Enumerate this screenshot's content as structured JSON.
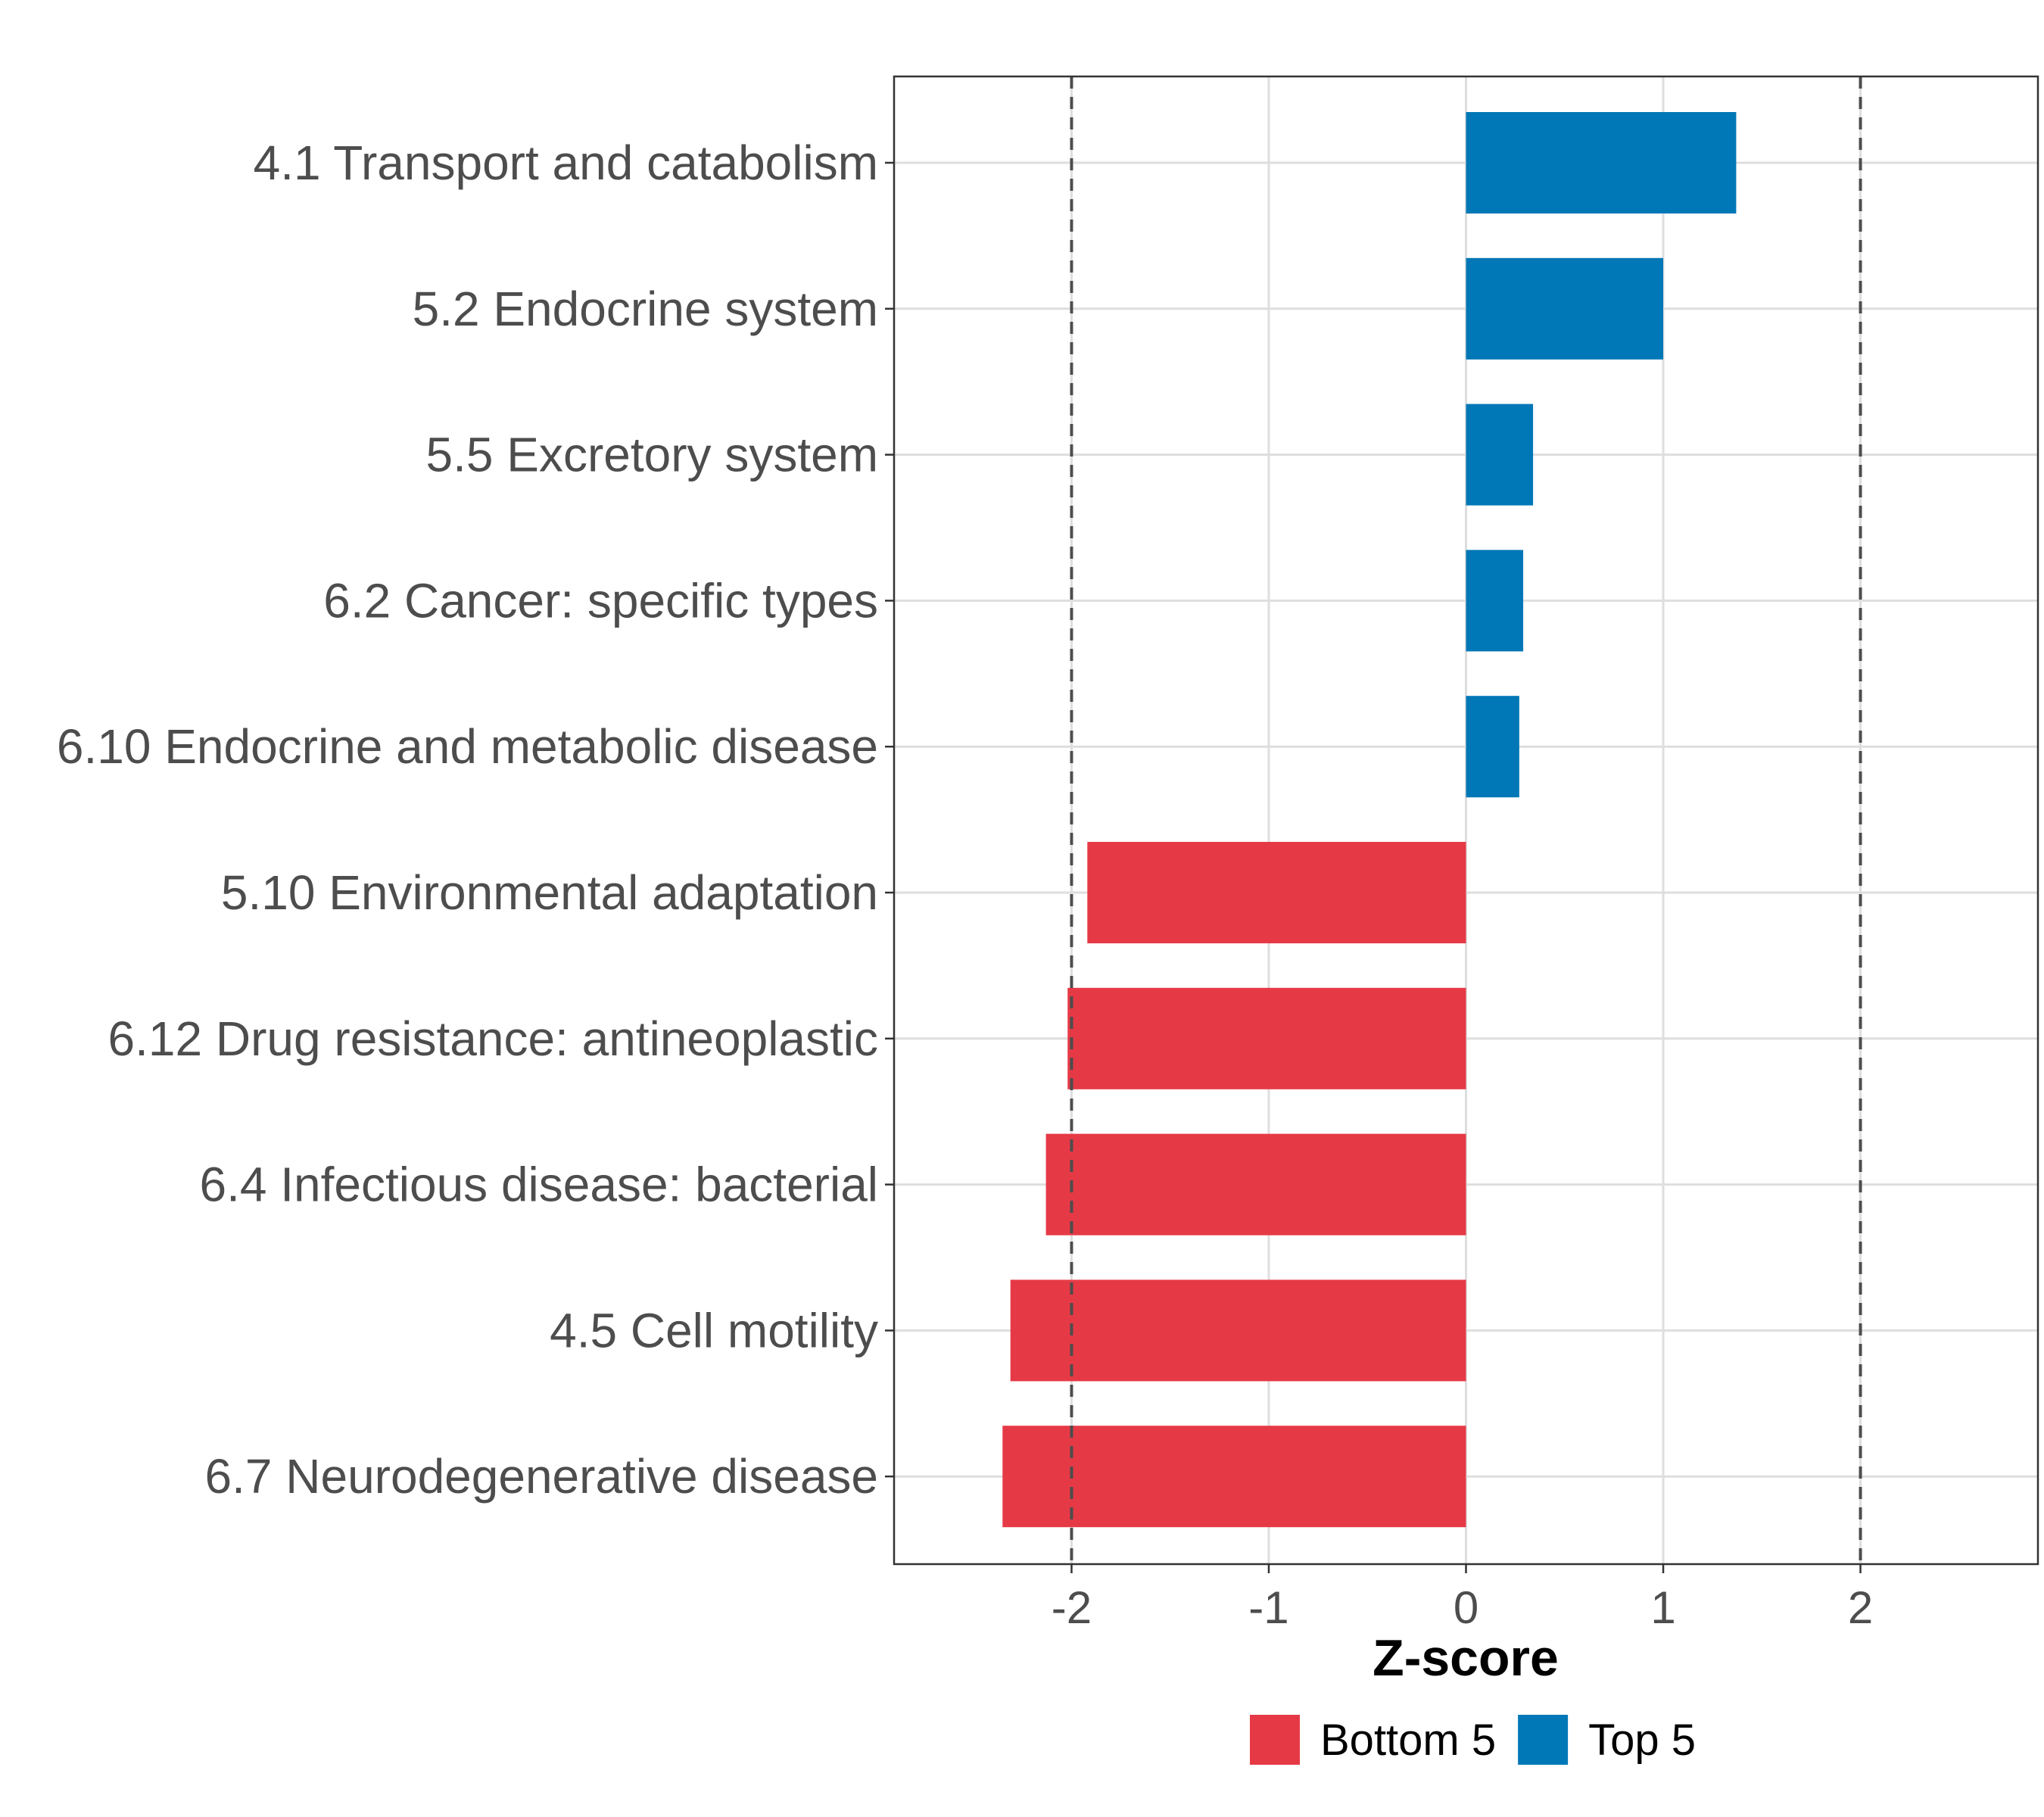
{
  "chart_data": {
    "type": "bar",
    "orientation": "horizontal",
    "categories": [
      "4.1 Transport and catabolism",
      "5.2 Endocrine system",
      "5.5 Excretory system",
      "6.2 Cancer: specific types",
      "6.10 Endocrine and metabolic disease",
      "5.10 Environmental adaptation",
      "6.12 Drug resistance: antineoplastic",
      "6.4 Infectious disease: bacterial",
      "4.5 Cell motility",
      "6.7 Neurodegenerative disease"
    ],
    "values": [
      1.37,
      1.0,
      0.34,
      0.29,
      0.27,
      -1.92,
      -2.02,
      -2.13,
      -2.31,
      -2.35
    ],
    "groups": [
      "Top 5",
      "Top 5",
      "Top 5",
      "Top 5",
      "Top 5",
      "Bottom 5",
      "Bottom 5",
      "Bottom 5",
      "Bottom 5",
      "Bottom 5"
    ],
    "xlabel": "Z-score",
    "ylabel": "",
    "xlim": [
      -2.9,
      2.9
    ],
    "xticks": [
      "-2",
      "-1",
      "0",
      "1",
      "2"
    ],
    "xtick_values": [
      -2,
      -1,
      0,
      1,
      2
    ],
    "reference_lines": [
      -2,
      2
    ],
    "grid": true,
    "legend": {
      "position": "bottom",
      "entries": [
        {
          "label": "Bottom 5",
          "color": "#e63946"
        },
        {
          "label": "Top 5",
          "color": "#0077b6"
        }
      ]
    },
    "colors": {
      "Top 5": "#0077b6",
      "Bottom 5": "#e63946"
    }
  }
}
